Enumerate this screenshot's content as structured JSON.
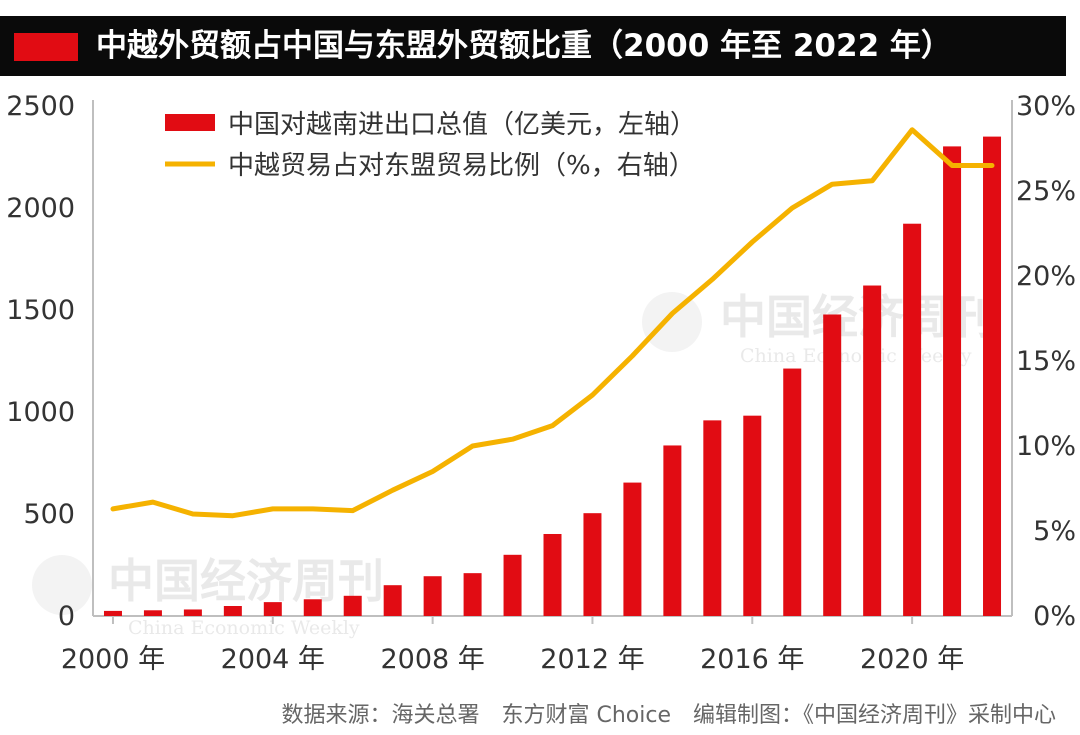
{
  "title": "中越外贸额占中国与东盟外贸额比重（2000 年至 2022 年）",
  "source": "数据来源：海关总署　东方财富 Choice　编辑制图：《中国经济周刊》采制中心",
  "watermark": {
    "cn": "中国经济周刊",
    "en": "China Economic Weekly"
  },
  "colors": {
    "bar": "#e10c13",
    "line": "#f5b200",
    "title_bg": "#0a0a0a",
    "accent": "#e10c13"
  },
  "chart_data": {
    "type": "bar+line",
    "categories": [
      "2000",
      "2001",
      "2002",
      "2003",
      "2004",
      "2005",
      "2006",
      "2007",
      "2008",
      "2009",
      "2010",
      "2011",
      "2012",
      "2013",
      "2014",
      "2015",
      "2016",
      "2017",
      "2018",
      "2019",
      "2020",
      "2021",
      "2022"
    ],
    "x_tick_labels": [
      "2000 年",
      "2004 年",
      "2008 年",
      "2012 年",
      "2016 年",
      "2020 年"
    ],
    "x_tick_categories": [
      "2000",
      "2004",
      "2008",
      "2012",
      "2016",
      "2020"
    ],
    "y_left": {
      "ticks": [
        "0",
        "500",
        "1000",
        "1500",
        "2000",
        "2500"
      ],
      "ylim": [
        0,
        2500
      ]
    },
    "y_right": {
      "ticks": [
        "0%",
        "5%",
        "10%",
        "15%",
        "20%",
        "25%",
        "30%"
      ],
      "ylim": [
        0,
        30
      ]
    },
    "series": [
      {
        "name": "中国对越南进出口总值（亿美元，左轴）",
        "type": "bar",
        "axis": "left",
        "values": [
          25,
          28,
          32,
          49,
          68,
          82,
          99,
          151,
          195,
          210,
          300,
          402,
          504,
          654,
          836,
          959,
          982,
          1213,
          1478,
          1620,
          1923,
          2302,
          2350
        ]
      },
      {
        "name": "中越贸易占对东盟贸易比例（%，右轴）",
        "type": "line",
        "axis": "right",
        "values": [
          6.3,
          6.7,
          6.0,
          5.9,
          6.3,
          6.3,
          6.2,
          7.4,
          8.5,
          10.0,
          10.4,
          11.2,
          13.0,
          15.3,
          17.8,
          19.8,
          22.0,
          24.0,
          25.4,
          25.6,
          28.6,
          26.5,
          26.5
        ]
      }
    ],
    "legend": "top-left",
    "grid": false
  }
}
